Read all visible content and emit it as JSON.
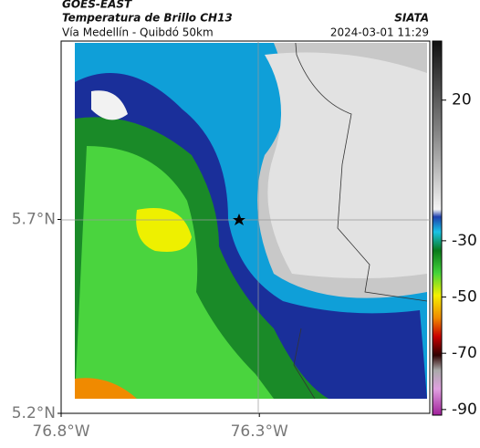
{
  "header": {
    "source": "GOES-EAST",
    "title": "Temperatura de Brillo CH13",
    "subtitle": "Vía Medellín - Quibdó 50km",
    "agency": "SIATA",
    "datetime": "2024-03-01 11:29"
  },
  "map": {
    "latlim": [
      5.2,
      6.16
    ],
    "lonlim": [
      -76.8,
      -75.87
    ],
    "lat_ticks": [
      {
        "value": 5.7,
        "label": "5.7°N"
      },
      {
        "value": 5.2,
        "label": "5.2°N"
      }
    ],
    "lon_ticks": [
      {
        "value": -76.8,
        "label": "76.8°W"
      },
      {
        "value": -76.3,
        "label": "76.3°W"
      }
    ]
  },
  "colorbar": {
    "lim": [
      41,
      -92
    ],
    "ticks": [
      20,
      -30,
      -50,
      -70,
      -90
    ]
  }
}
